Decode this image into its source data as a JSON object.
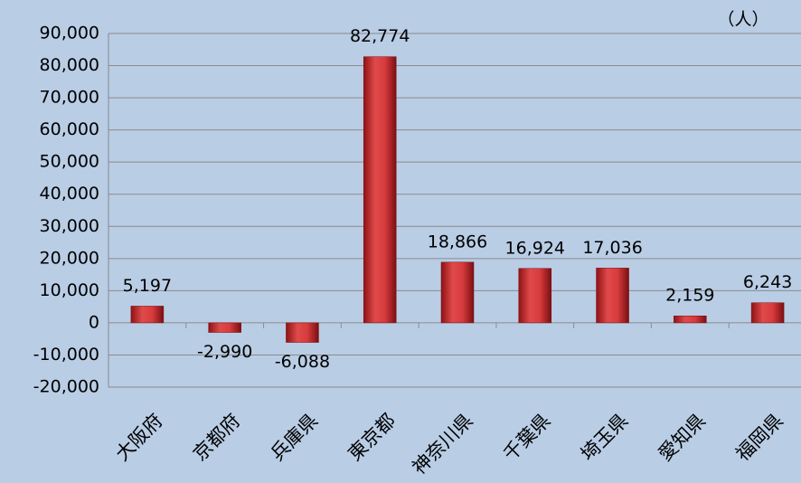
{
  "chart_data": {
    "type": "bar",
    "annotation": "（人）",
    "categories": [
      "大阪府",
      "京都府",
      "兵庫県",
      "東京都",
      "神奈川県",
      "千葉県",
      "埼玉県",
      "愛知県",
      "福岡県"
    ],
    "values": [
      5197,
      -2990,
      -6088,
      82774,
      18866,
      16924,
      17036,
      2159,
      6243
    ],
    "value_labels": [
      "5,197",
      "-2,990",
      "-6,088",
      "82,774",
      "18,866",
      "16,924",
      "17,036",
      "2,159",
      "6,243"
    ],
    "color": "#c0282b",
    "ylim": [
      -20000,
      90000
    ],
    "yticks": [
      {
        "value": -20000,
        "label": "-20,000"
      },
      {
        "value": -10000,
        "label": "-10,000"
      },
      0,
      {
        "value": 10000,
        "label": "10,000"
      },
      {
        "value": 20000,
        "label": "20,000"
      },
      {
        "value": 30000,
        "label": "30,000"
      },
      {
        "value": 40000,
        "label": "40,000"
      },
      {
        "value": 50000,
        "label": "50,000"
      },
      {
        "value": 60000,
        "label": "60,000"
      },
      {
        "value": 70000,
        "label": "70,000"
      },
      {
        "value": 80000,
        "label": "80,000"
      },
      {
        "value": 90000,
        "label": "90,000"
      }
    ],
    "grid": true
  }
}
